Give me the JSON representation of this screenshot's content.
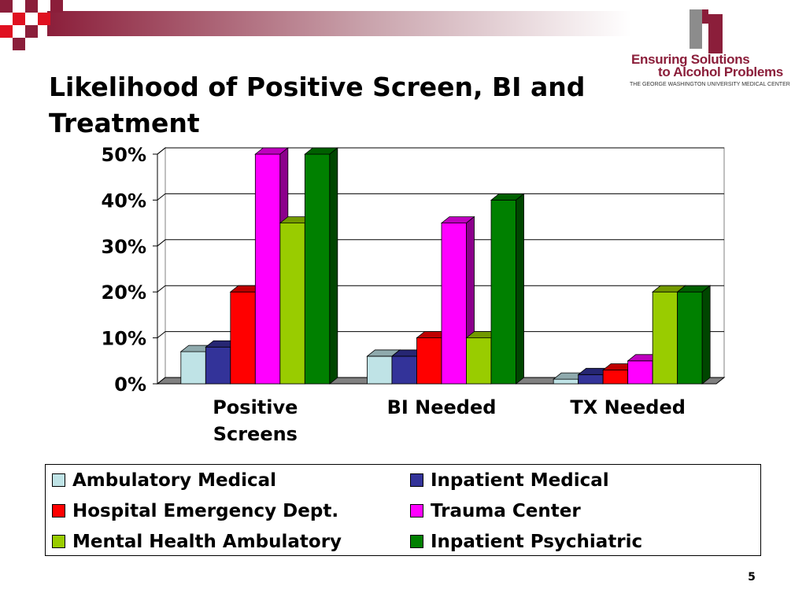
{
  "slide": {
    "title": "Likelihood of Positive Screen, BI and Treatment",
    "page_number": "5"
  },
  "logo": {
    "line1": "Ensuring Solutions",
    "line2": "to Alcohol Problems",
    "subline": "THE GEORGE WASHINGTON UNIVERSITY MEDICAL CENTER",
    "colors": {
      "maroon": "#8b1e3a",
      "gray": "#8c8c8c"
    }
  },
  "chart_data": {
    "type": "bar",
    "style": "3d-clustered-column",
    "categories": [
      "Positive Screens",
      "BI Needed",
      "TX Needed"
    ],
    "series": [
      {
        "name": "Ambulatory Medical",
        "color": "#bfe3e6",
        "values": [
          7,
          6,
          1
        ]
      },
      {
        "name": "Inpatient Medical",
        "color": "#333399",
        "values": [
          8,
          6,
          2
        ]
      },
      {
        "name": "Hospital Emergency Dept.",
        "color": "#ff0000",
        "values": [
          20,
          10,
          3
        ]
      },
      {
        "name": "Trauma Center",
        "color": "#ff00ff",
        "values": [
          50,
          35,
          5
        ]
      },
      {
        "name": "Mental Health Ambulatory",
        "color": "#99cc00",
        "values": [
          35,
          10,
          20
        ]
      },
      {
        "name": "Inpatient Psychiatric",
        "color": "#008000",
        "values": [
          50,
          40,
          20
        ]
      }
    ],
    "ylim": [
      0,
      50
    ],
    "yticks": [
      0,
      10,
      20,
      30,
      40,
      50
    ],
    "ytick_labels": [
      "0%",
      "10%",
      "20%",
      "30%",
      "40%",
      "50%"
    ],
    "xlabel": "",
    "ylabel": "",
    "grid": true,
    "legend_position": "bottom"
  }
}
